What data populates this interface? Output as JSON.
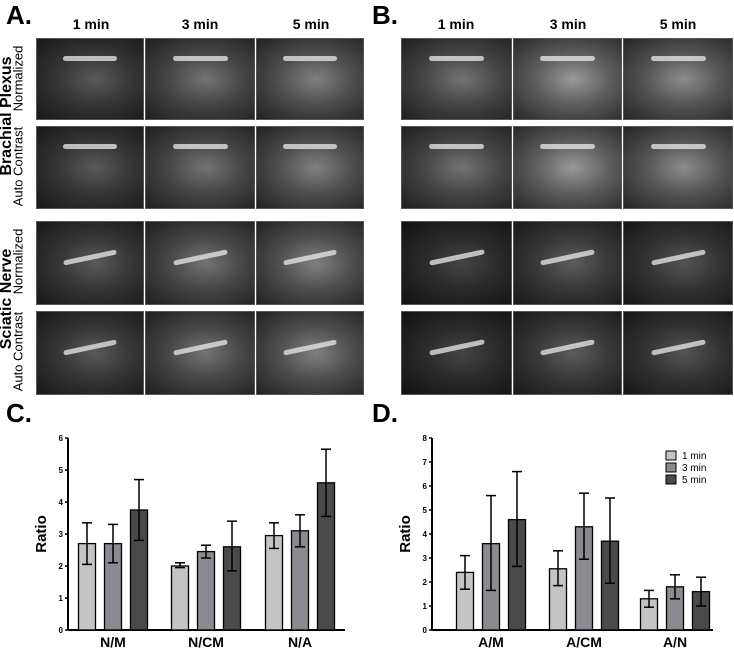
{
  "panels": {
    "a": "A.",
    "b": "B.",
    "c": "C.",
    "d": "D."
  },
  "columns": [
    "1 min",
    "3 min",
    "5 min"
  ],
  "rows": {
    "brachial": "Brachial Plexus",
    "sciatic": "Sciatic Nerve",
    "normalized": "Normalized",
    "auto": "Auto Contrast"
  },
  "chart_data": [
    {
      "type": "bar",
      "panel": "C.",
      "categories": [
        "N/M",
        "N/CM",
        "N/A"
      ],
      "ylabel": "Ratio",
      "ylim": [
        0,
        6
      ],
      "yticks": [
        0,
        1,
        2,
        3,
        4,
        5,
        6
      ],
      "series": [
        {
          "name": "1 min",
          "color": "#c4c4c4",
          "values": [
            2.7,
            2.0,
            2.95
          ],
          "err_low": [
            2.05,
            1.95,
            2.55
          ],
          "err_high": [
            3.35,
            2.1,
            3.35
          ]
        },
        {
          "name": "3 min",
          "color": "#8a8a90",
          "values": [
            2.7,
            2.45,
            3.1
          ],
          "err_low": [
            2.1,
            2.25,
            2.6
          ],
          "err_high": [
            3.3,
            2.65,
            3.6
          ]
        },
        {
          "name": "5 min",
          "color": "#4a4a4a",
          "values": [
            3.75,
            2.6,
            4.6
          ],
          "err_low": [
            2.8,
            1.85,
            3.55
          ],
          "err_high": [
            4.7,
            3.4,
            5.65
          ]
        }
      ]
    },
    {
      "type": "bar",
      "panel": "D.",
      "categories": [
        "A/M",
        "A/CM",
        "A/N"
      ],
      "ylabel": "Ratio",
      "ylim": [
        0,
        8
      ],
      "yticks": [
        0,
        1,
        2,
        3,
        4,
        5,
        6,
        7,
        8
      ],
      "legend": "top-right",
      "series": [
        {
          "name": "1 min",
          "color": "#c4c4c4",
          "values": [
            2.4,
            2.55,
            1.3
          ],
          "err_low": [
            1.7,
            1.85,
            0.95
          ],
          "err_high": [
            3.1,
            3.3,
            1.65
          ]
        },
        {
          "name": "3 min",
          "color": "#8a8a90",
          "values": [
            3.6,
            4.3,
            1.8
          ],
          "err_low": [
            1.65,
            2.95,
            1.3
          ],
          "err_high": [
            5.6,
            5.7,
            2.3
          ]
        },
        {
          "name": "5 min",
          "color": "#4a4a4a",
          "values": [
            4.6,
            3.7,
            1.6
          ],
          "err_low": [
            2.65,
            1.95,
            1.0
          ],
          "err_high": [
            6.6,
            5.5,
            2.2
          ]
        }
      ]
    }
  ]
}
